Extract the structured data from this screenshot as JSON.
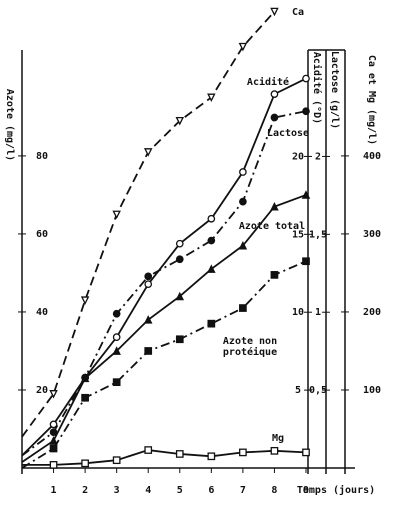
{
  "chart_data": {
    "type": "line",
    "x_label": "Temps (jours)",
    "xlim": [
      0,
      9
    ],
    "xticks": [
      1,
      2,
      3,
      4,
      5,
      6,
      7,
      8,
      9
    ],
    "axes": [
      {
        "label": "Azote (mg/l)",
        "lim": [
          0,
          117.4
        ],
        "ticks": [
          20,
          40,
          60,
          80
        ]
      },
      {
        "label": "Acidité (°D)",
        "lim": [
          0,
          29.4
        ],
        "ticks": [
          5,
          10,
          15,
          20
        ]
      },
      {
        "label": "Lactose (g/l)",
        "lim": [
          0,
          2.94
        ],
        "ticks": [
          {
            "value": 0.5,
            "label": "0,5"
          },
          1,
          {
            "value": 1.5,
            "label": "1,5"
          },
          2
        ]
      },
      {
        "label": "Ca et Mg (mg/l)",
        "lim": [
          0,
          587
        ],
        "ticks": [
          100,
          200,
          300,
          400
        ]
      }
    ],
    "series": [
      {
        "name": "Ca",
        "axis": 3,
        "color": "#111",
        "dash": "dashed",
        "marker": "triangle-down-open",
        "x": [
          0,
          1,
          2,
          3,
          4,
          5,
          6,
          7,
          8
        ],
        "values": [
          40,
          95,
          215,
          325,
          405,
          445,
          475,
          540,
          585
        ]
      },
      {
        "name": "Acidité",
        "axis": 1,
        "color": "#111",
        "dash": "solid",
        "marker": "circle-open",
        "x": [
          0,
          1,
          2,
          3,
          4,
          5,
          6,
          7,
          8,
          9
        ],
        "values": [
          0.8,
          2.8,
          5.8,
          8.4,
          11.8,
          14.4,
          16.0,
          19.0,
          24.0,
          25.0
        ]
      },
      {
        "name": "Lactose",
        "axis": 2,
        "color": "#111",
        "dash": "dashdot",
        "marker": "circle-filled",
        "x": [
          0,
          1,
          2,
          3,
          4,
          5,
          6,
          7,
          8,
          9
        ],
        "values": [
          0.08,
          0.23,
          0.58,
          0.99,
          1.23,
          1.34,
          1.46,
          1.71,
          2.25,
          2.29
        ]
      },
      {
        "name": "Azote total",
        "axis": 0,
        "color": "#111",
        "dash": "solid",
        "marker": "triangle-filled",
        "x": [
          0,
          1,
          2,
          3,
          4,
          5,
          6,
          7,
          8,
          9
        ],
        "values": [
          1.5,
          7,
          23,
          30,
          38,
          44,
          51,
          57,
          67,
          70
        ]
      },
      {
        "name": "Azote non protéique",
        "axis": 0,
        "color": "#111",
        "dash": "dashdot",
        "marker": "square-filled",
        "x": [
          0,
          1,
          2,
          3,
          4,
          5,
          6,
          7,
          8,
          9
        ],
        "values": [
          0,
          5,
          18,
          22,
          30,
          33,
          37,
          41,
          49.5,
          53
        ]
      },
      {
        "name": "Mg",
        "axis": 3,
        "color": "#111",
        "dash": "solid",
        "marker": "square-open",
        "x": [
          0,
          1,
          2,
          3,
          4,
          5,
          6,
          7,
          8,
          9
        ],
        "values": [
          4,
          4,
          6,
          10,
          23,
          18,
          15,
          20,
          22,
          20
        ]
      }
    ]
  }
}
